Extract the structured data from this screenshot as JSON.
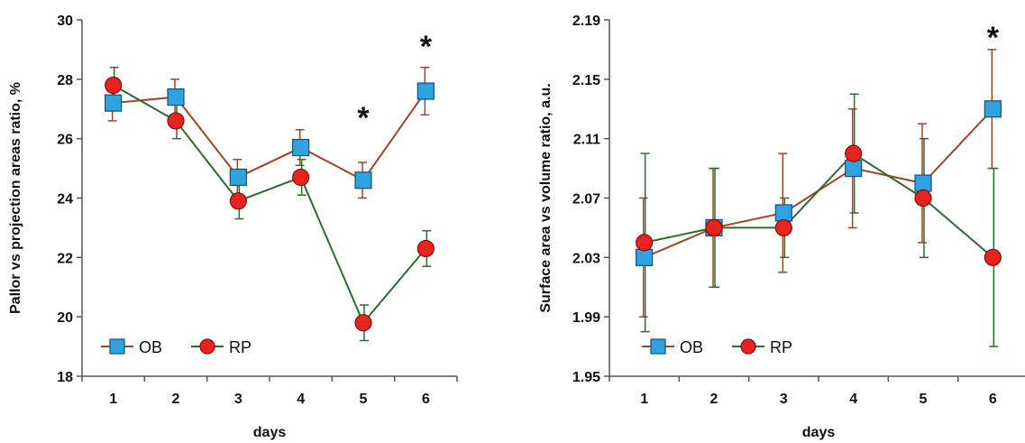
{
  "chart_data": [
    {
      "type": "line",
      "xlabel": "days",
      "ylabel": "Pallor vs projection areas ratio, %",
      "x": [
        1,
        2,
        3,
        4,
        5,
        6
      ],
      "xticks": [
        "1",
        "2",
        "3",
        "4",
        "5",
        "6"
      ],
      "ylim": [
        18,
        30
      ],
      "yticks": [
        "18",
        "20",
        "22",
        "24",
        "26",
        "28",
        "30"
      ],
      "grid": false,
      "legend_position": "bottom-left",
      "series": [
        {
          "name": "OB",
          "marker": "square",
          "line_color": "#a0452a",
          "marker_color": "#2fa3df",
          "values": [
            27.2,
            27.4,
            24.7,
            25.7,
            24.6,
            27.6
          ],
          "error": [
            0.6,
            0.6,
            0.6,
            0.6,
            0.6,
            0.8
          ]
        },
        {
          "name": "RP",
          "marker": "circle",
          "line_color": "#2e6b2e",
          "marker_color": "#e8231f",
          "values": [
            27.8,
            26.6,
            23.9,
            24.7,
            19.8,
            22.3
          ],
          "error": [
            0.6,
            0.6,
            0.6,
            0.6,
            0.6,
            0.6
          ]
        }
      ],
      "annotations": [
        {
          "x": 5,
          "y": 26.9,
          "text": "*"
        },
        {
          "x": 6,
          "y": 29.3,
          "text": "*"
        }
      ]
    },
    {
      "type": "line",
      "xlabel": "days",
      "ylabel": "Surface area vs volume ratio, a.u.",
      "x": [
        1,
        2,
        3,
        4,
        5,
        6
      ],
      "xticks": [
        "1",
        "2",
        "3",
        "4",
        "5",
        "6"
      ],
      "ylim": [
        1.95,
        2.19
      ],
      "yticks": [
        "1.95",
        "1.99",
        "2.03",
        "2.07",
        "2.11",
        "2.15",
        "2.19"
      ],
      "grid": false,
      "legend_position": "bottom-left",
      "series": [
        {
          "name": "OB",
          "marker": "square",
          "line_color": "#a0452a",
          "marker_color": "#2fa3df",
          "values": [
            2.03,
            2.05,
            2.06,
            2.09,
            2.08,
            2.13
          ],
          "error": [
            0.04,
            0.04,
            0.04,
            0.04,
            0.04,
            0.04
          ]
        },
        {
          "name": "RP",
          "marker": "circle",
          "line_color": "#2e6b2e",
          "marker_color": "#e8231f",
          "values": [
            2.04,
            2.05,
            2.05,
            2.1,
            2.07,
            2.03
          ],
          "error": [
            0.06,
            0.04,
            0.02,
            0.04,
            0.04,
            0.06
          ]
        }
      ],
      "annotations": [
        {
          "x": 6,
          "y": 2.182,
          "text": "*"
        }
      ]
    }
  ]
}
